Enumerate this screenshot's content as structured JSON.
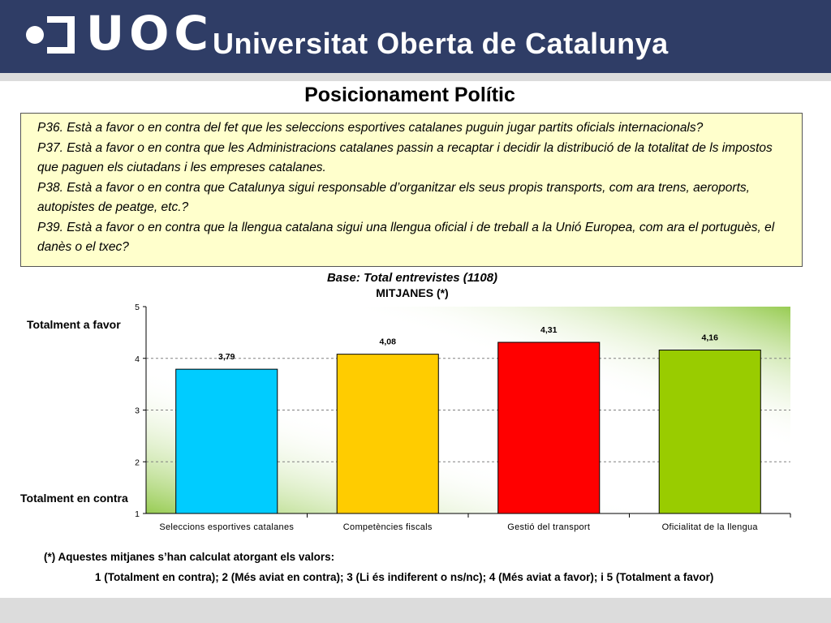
{
  "header": {
    "logo_abbrev": "UOC",
    "university_name": "Universitat Oberta de Catalunya",
    "background_color": "#2f3d66"
  },
  "page_title": "Posicionament Polític",
  "questions": [
    "P36. Està a favor o en contra del fet que les seleccions esportives catalanes puguin jugar partits oficials internacionals?",
    "P37. Està a favor o en contra que les Administracions catalanes passin a recaptar i decidir la distribució de la totalitat de ls impostos que paguen els ciutadans i les empreses catalanes.",
    "P38. Està a favor o en contra que Catalunya sigui responsable d’organitzar els seus propis transports, com ara trens, aeroports, autopistes de peatge, etc.?",
    "P39. Està a favor o en contra que la llengua catalana sigui una llengua oficial i de treball a la Unió Europea, com ara el portuguès, el danès o el txec?"
  ],
  "chart_data": {
    "type": "bar",
    "title": "Base: Total entrevistes (1108)",
    "subtitle": "MITJANES (*)",
    "categories": [
      "Seleccions esportives catalanes",
      "Competències fiscals",
      "Gestió del transport",
      "Oficialitat de la llengua"
    ],
    "values": [
      3.79,
      4.08,
      4.31,
      4.16
    ],
    "value_labels": [
      "3,79",
      "4,08",
      "4,31",
      "4,16"
    ],
    "bar_colors": [
      "#00ccff",
      "#ffcc00",
      "#ff0000",
      "#99cc00"
    ],
    "ylim": [
      1,
      5
    ],
    "yticks": [
      1,
      2,
      3,
      4,
      5
    ],
    "ylabel_top": "Totalment a favor",
    "ylabel_bottom": "Totalment en contra",
    "grid": true,
    "background": "green gradient"
  },
  "footnote": {
    "intro": "(*) Aquestes mitjanes s’han calculat atorgant els valors:",
    "values": "1 (Totalment en contra); 2 (Més aviat en contra); 3 (Li és indiferent o ns/nc); 4 (Més aviat a favor); i 5 (Totalment a favor)"
  }
}
